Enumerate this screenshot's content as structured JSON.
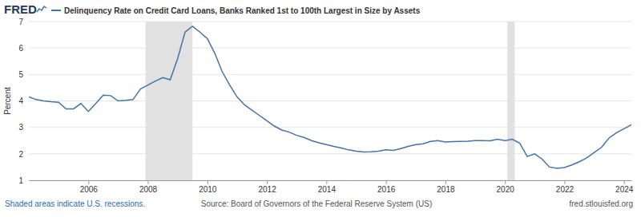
{
  "chart_data": {
    "type": "line",
    "logo": "FRED",
    "y_label": "Percent",
    "annotations": [
      "Shaded areas indicate U.S. recessions.",
      "Source: Board of Governors of the Federal Reserve System (US)",
      "fred.stlouisfed.org"
    ],
    "legend": "top-left",
    "grid": true,
    "xlim": [
      2004,
      2024.25
    ],
    "xticks": [
      2006,
      2008,
      2010,
      2012,
      2014,
      2016,
      2018,
      2020,
      2022,
      2024
    ],
    "ylim": [
      1,
      7
    ],
    "yticks": [
      1,
      2,
      3,
      4,
      5,
      6,
      7
    ],
    "recessions": [
      {
        "start": 2007.92,
        "end": 2009.5
      },
      {
        "start": 2020.08,
        "end": 2020.33
      }
    ],
    "x": [
      2004,
      2004.25,
      2004.5,
      2004.75,
      2005,
      2005.25,
      2005.5,
      2005.75,
      2006,
      2006.25,
      2006.5,
      2006.75,
      2007,
      2007.25,
      2007.5,
      2007.75,
      2008,
      2008.25,
      2008.5,
      2008.75,
      2009,
      2009.25,
      2009.5,
      2009.75,
      2010,
      2010.25,
      2010.5,
      2010.75,
      2011,
      2011.25,
      2011.5,
      2011.75,
      2012,
      2012.25,
      2012.5,
      2012.75,
      2013,
      2013.25,
      2013.5,
      2013.75,
      2014,
      2014.25,
      2014.5,
      2014.75,
      2015,
      2015.25,
      2015.5,
      2015.75,
      2016,
      2016.25,
      2016.5,
      2016.75,
      2017,
      2017.25,
      2017.5,
      2017.75,
      2018,
      2018.25,
      2018.5,
      2018.75,
      2019,
      2019.25,
      2019.5,
      2019.75,
      2020,
      2020.25,
      2020.5,
      2020.75,
      2021,
      2021.25,
      2021.5,
      2021.75,
      2022,
      2022.25,
      2022.5,
      2022.75,
      2023,
      2023.25,
      2023.5,
      2023.75,
      2024,
      2024.25
    ],
    "series": [
      {
        "name": "Delinquency Rate on Credit Card Loans, Banks Ranked 1st to 100th Largest in Size by Assets",
        "color": "#4572a7",
        "values": [
          4.15,
          4.05,
          4.0,
          3.97,
          3.95,
          3.7,
          3.7,
          3.9,
          3.6,
          3.9,
          4.22,
          4.2,
          4.0,
          4.02,
          4.05,
          4.45,
          4.6,
          4.75,
          4.88,
          4.8,
          5.6,
          6.6,
          6.82,
          6.6,
          6.35,
          5.8,
          5.1,
          4.6,
          4.15,
          3.85,
          3.65,
          3.45,
          3.25,
          3.05,
          2.9,
          2.82,
          2.7,
          2.62,
          2.5,
          2.42,
          2.35,
          2.28,
          2.22,
          2.15,
          2.1,
          2.07,
          2.08,
          2.1,
          2.15,
          2.13,
          2.2,
          2.28,
          2.35,
          2.38,
          2.47,
          2.5,
          2.45,
          2.46,
          2.47,
          2.48,
          2.5,
          2.5,
          2.49,
          2.55,
          2.5,
          2.55,
          2.4,
          1.9,
          2.0,
          1.8,
          1.5,
          1.45,
          1.48,
          1.58,
          1.7,
          1.85,
          2.05,
          2.25,
          2.6,
          2.8,
          2.95,
          3.1
        ]
      }
    ]
  }
}
